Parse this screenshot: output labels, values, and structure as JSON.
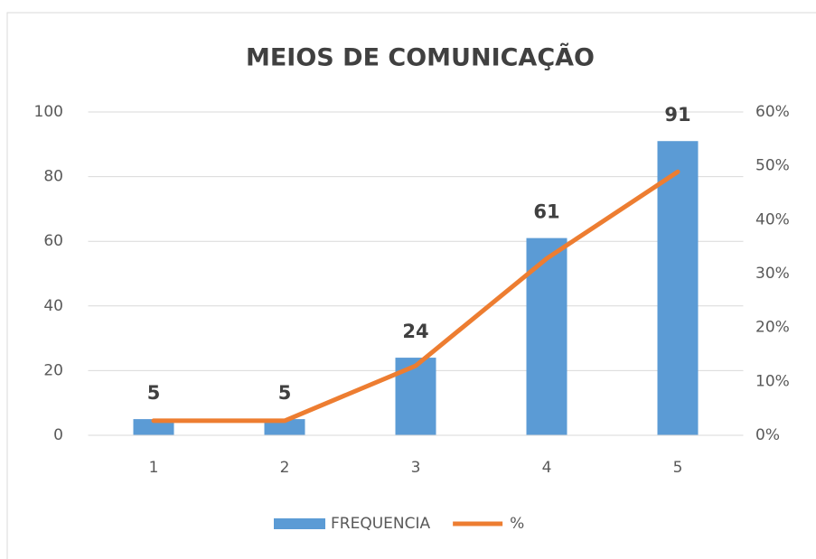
{
  "chart_data": {
    "type": "bar",
    "title": "MEIOS DE COMUNICAÇÃO",
    "categories": [
      "1",
      "2",
      "3",
      "4",
      "5"
    ],
    "series": [
      {
        "name": "FREQUENCIA",
        "type": "bar",
        "color": "#5b9bd5",
        "values": [
          5,
          5,
          24,
          61,
          91
        ]
      },
      {
        "name": "%",
        "type": "line",
        "axis": "y2",
        "color": "#ed7d31",
        "values": [
          2.7,
          2.7,
          12.9,
          32.8,
          48.9
        ]
      }
    ],
    "ylim": [
      0,
      100
    ],
    "yticks": [
      0,
      20,
      40,
      60,
      80,
      100
    ],
    "y2lim": [
      0,
      60
    ],
    "y2ticks": [
      {
        "value": 0,
        "label": "0%"
      },
      {
        "value": 10,
        "label": "10%"
      },
      {
        "value": 20,
        "label": "20%"
      },
      {
        "value": 30,
        "label": "30%"
      },
      {
        "value": 40,
        "label": "40%"
      },
      {
        "value": 50,
        "label": "50%"
      },
      {
        "value": 60,
        "label": "60%"
      }
    ],
    "grid": true,
    "legend": "bottom"
  }
}
